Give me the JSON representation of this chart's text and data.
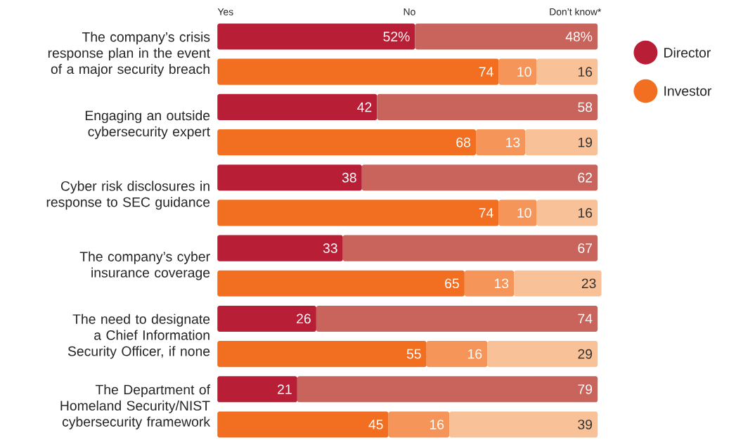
{
  "chart_data": {
    "type": "bar",
    "orientation": "horizontal",
    "stacked": true,
    "tick_labels": "y",
    "legend": "right",
    "xlim": [
      0,
      101
    ],
    "categories": [
      "The company’s crisis response plan in the event of a major security breach",
      null,
      "Engaging an outside cybersecurity expert",
      null,
      "Cyber risk disclosures in response to SEC guidance",
      null,
      "The company’s cyber insurance coverage",
      null,
      "The need to designate a Chief Information Security Officer, if none",
      null,
      "The Department of Homeland Security/NIST cybersecurity framework",
      null
    ],
    "annotations": [
      "Yes",
      "No",
      "Don’t know*"
    ],
    "series": [
      {
        "name": "Director",
        "color": "#b81e36",
        "values": [
          52,
          null,
          42,
          null,
          38,
          null,
          33,
          null,
          26,
          null,
          21,
          null
        ],
        "value_labels": [
          "52%",
          null,
          "42",
          null,
          "38",
          null,
          "33",
          null,
          "26",
          null,
          "21",
          null
        ]
      },
      {
        "name": "Investor",
        "color": "#f26f22",
        "values": [
          null,
          74,
          null,
          68,
          null,
          74,
          null,
          65,
          null,
          55,
          null,
          45
        ],
        "value_labels": [
          null,
          "74",
          null,
          "68",
          null,
          "74",
          null,
          "65",
          null,
          "55",
          null,
          "45"
        ]
      },
      {
        "colors": [
          "#c8645b",
          "#f5955a",
          "#c8645b",
          "#f5955a",
          "#c8645b",
          "#f5955a",
          "#c8645b",
          "#f5955a",
          "#c8645b",
          "#f5955a",
          "#c8645b",
          "#f5955a"
        ],
        "values": [
          48,
          10,
          58,
          13,
          62,
          10,
          67,
          13,
          74,
          16,
          79,
          16
        ],
        "value_labels": [
          "48%",
          "10",
          "58",
          "13",
          "62",
          "10",
          "67",
          "13",
          "74",
          "16",
          "79",
          "16"
        ]
      },
      {
        "color": "#f9c198",
        "values": [
          null,
          16,
          null,
          19,
          null,
          16,
          null,
          23,
          null,
          29,
          null,
          39
        ],
        "value_labels": [
          null,
          "16",
          null,
          "19",
          null,
          "16",
          null,
          "23",
          null,
          "29",
          null,
          "39"
        ]
      }
    ]
  }
}
